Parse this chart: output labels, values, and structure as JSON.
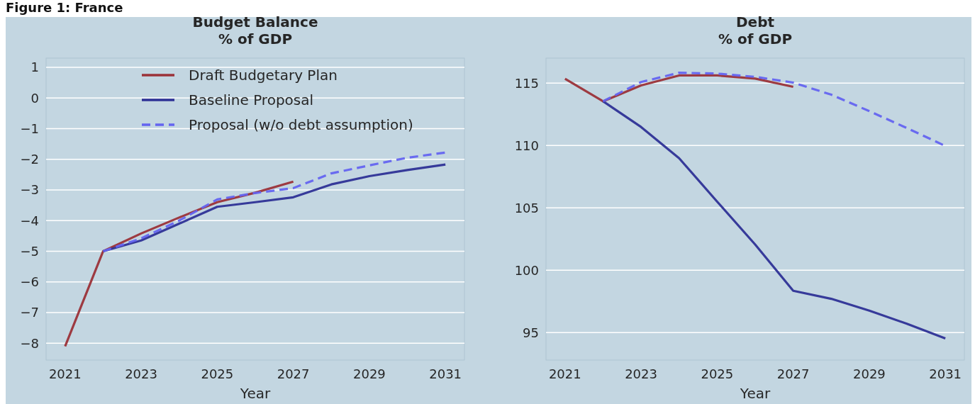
{
  "chart_data": [
    {
      "type": "line",
      "title": "Budget Balance\n% of GDP",
      "xlabel": "Year",
      "xlim": [
        2020.5,
        2031.5
      ],
      "xticks": [
        2021,
        2023,
        2025,
        2027,
        2029,
        2031
      ],
      "ylim": [
        -8.55,
        1.3
      ],
      "yticks": [
        {
          "value": 1,
          "label": "1"
        },
        {
          "value": 0,
          "label": "0"
        },
        {
          "value": -1,
          "label": "−1"
        },
        {
          "value": -2,
          "label": "−2"
        },
        {
          "value": -3,
          "label": "−3"
        },
        {
          "value": -4,
          "label": "−4"
        },
        {
          "value": -5,
          "label": "−5"
        },
        {
          "value": -6,
          "label": "−6"
        },
        {
          "value": -7,
          "label": "−7"
        },
        {
          "value": -8,
          "label": "−8"
        }
      ],
      "grid": "y",
      "legend": "top",
      "annotations": [
        "Figure 1: France"
      ],
      "series": [
        {
          "name": "Draft Budgetary Plan",
          "color": "#9b3238",
          "line_style": "solid",
          "x": [
            2021,
            2022,
            2023,
            2024,
            2025,
            2026,
            2027
          ],
          "values": [
            -8.1,
            -5.0,
            -4.42,
            -3.9,
            -3.4,
            -3.09,
            -2.73
          ]
        },
        {
          "name": "Baseline Proposal",
          "color": "#2e3196",
          "line_style": "solid",
          "x": [
            2022,
            2023,
            2024,
            2025,
            2026,
            2027,
            2028,
            2029,
            2030,
            2031
          ],
          "values": [
            -5.0,
            -4.65,
            -4.1,
            -3.55,
            -3.4,
            -3.24,
            -2.82,
            -2.55,
            -2.35,
            -2.17
          ]
        },
        {
          "name": "Proposal (w/o debt assumption)",
          "color": "#6464f0",
          "line_style": "dashed",
          "x": [
            2022,
            2023,
            2024,
            2025,
            2026,
            2027,
            2028,
            2029,
            2030,
            2031
          ],
          "values": [
            -5.0,
            -4.58,
            -4.0,
            -3.31,
            -3.1,
            -2.94,
            -2.46,
            -2.2,
            -1.95,
            -1.78
          ]
        }
      ]
    },
    {
      "type": "line",
      "title": "Debt\n% of GDP",
      "xlabel": "Year",
      "xlim": [
        2020.5,
        2031.5
      ],
      "xticks": [
        2021,
        2023,
        2025,
        2027,
        2029,
        2031
      ],
      "ylim": [
        92.8,
        117
      ],
      "yticks": [
        95,
        100,
        105,
        110,
        115
      ],
      "grid": "y",
      "series": [
        {
          "color": "#9b3238",
          "line_style": "solid",
          "x": [
            2021,
            2022,
            2023,
            2024,
            2025,
            2026,
            2027
          ],
          "values": [
            115.34,
            113.54,
            114.81,
            115.61,
            115.61,
            115.36,
            114.7
          ]
        },
        {
          "color": "#2e3196",
          "line_style": "solid",
          "x": [
            2022,
            2023,
            2024,
            2025,
            2026,
            2027,
            2028,
            2029,
            2030,
            2031
          ],
          "values": [
            113.54,
            111.48,
            108.98,
            105.5,
            102.06,
            98.35,
            97.71,
            96.76,
            95.7,
            94.53
          ]
        },
        {
          "color": "#6464f0",
          "line_style": "dashed",
          "x": [
            2022,
            2023,
            2024,
            2025,
            2026,
            2027,
            2028,
            2029,
            2030,
            2031
          ],
          "values": [
            113.54,
            115.08,
            115.83,
            115.76,
            115.5,
            115.04,
            114.07,
            112.75,
            111.38,
            109.96
          ]
        }
      ]
    }
  ]
}
